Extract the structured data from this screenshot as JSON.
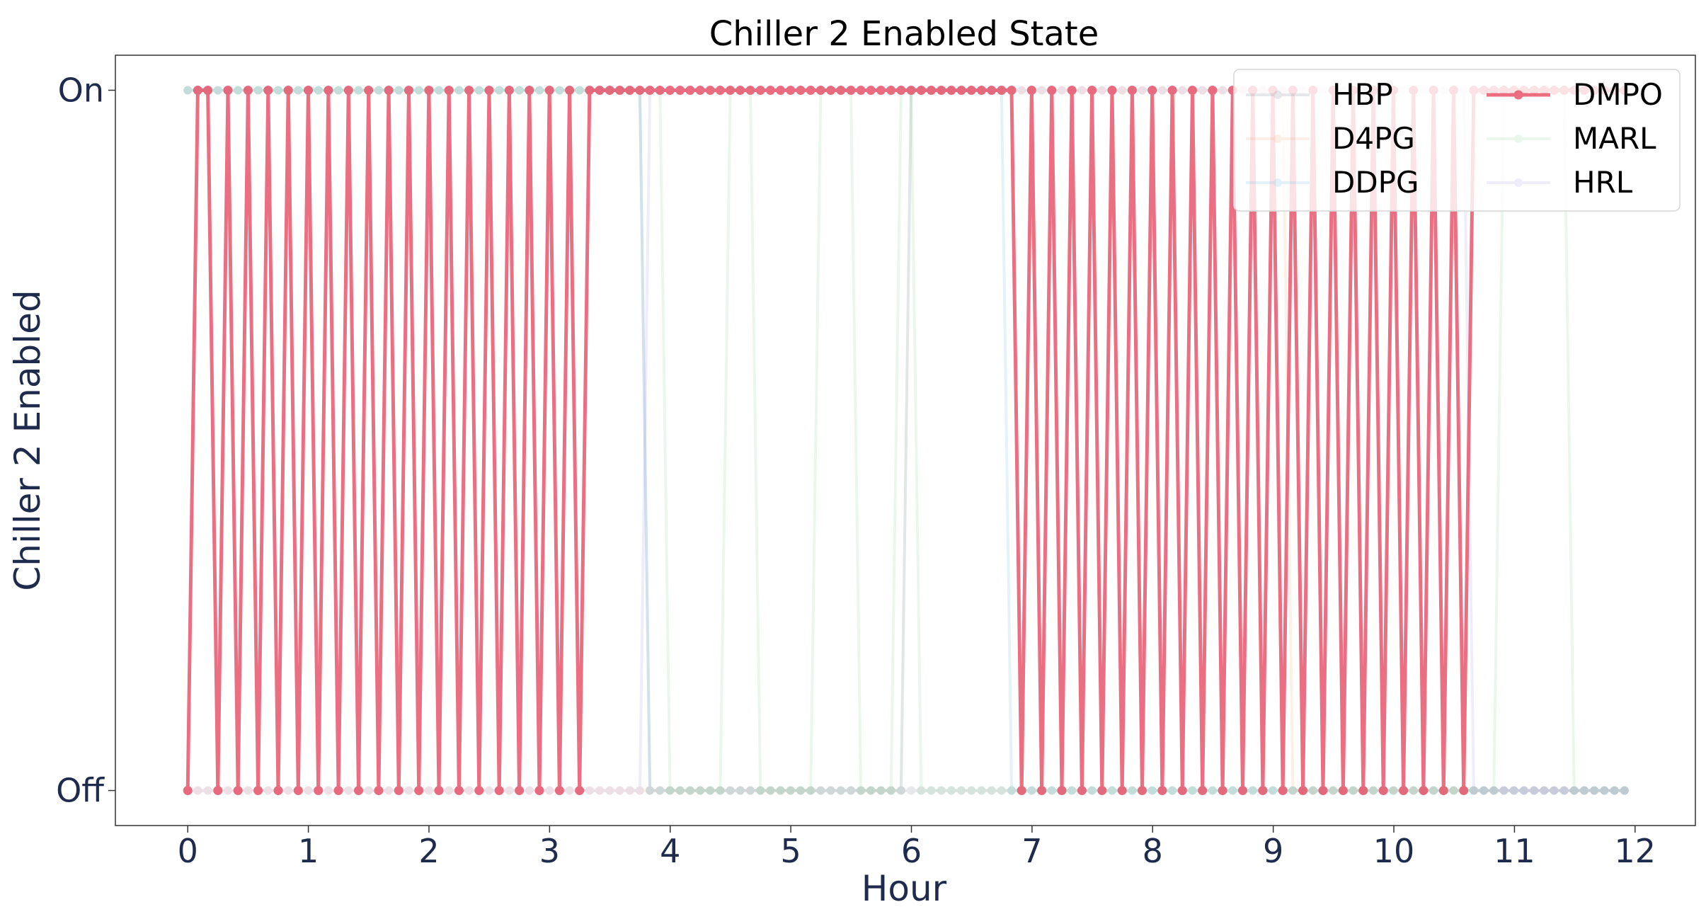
{
  "chart_data": {
    "type": "line",
    "title": "Chiller 2 Enabled State",
    "xlabel": "Hour",
    "ylabel": "Chiller 2 Enabled",
    "xlim": [
      -0.6,
      12.5
    ],
    "ylim": [
      -0.05,
      1.05
    ],
    "xticks": [
      0,
      1,
      2,
      3,
      4,
      5,
      6,
      7,
      8,
      9,
      10,
      11,
      12
    ],
    "yticks": [
      0,
      1
    ],
    "ytick_labels": [
      "Off",
      "On"
    ],
    "x_step_hours": 0.0833,
    "points_per_series": 144,
    "grid": false,
    "legend": {
      "position": "top-right",
      "columns": 2,
      "order": [
        "HBP",
        "D4PG",
        "DDPG",
        "DMPO",
        "MARL",
        "HRL"
      ]
    },
    "series": [
      {
        "name": "HBP",
        "color": "#1f2b4d",
        "alpha": 0.1,
        "highlight": false,
        "segments": [
          [
            0,
            46,
            1
          ],
          [
            46,
            144,
            0
          ]
        ]
      },
      {
        "name": "D4PG",
        "color": "#f3a36b",
        "alpha": 0.16,
        "highlight": false,
        "segments": [
          [
            0,
            72,
            0
          ],
          [
            72,
            110,
            1
          ],
          [
            110,
            144,
            0
          ]
        ]
      },
      {
        "name": "DDPG",
        "color": "#7ec8e3",
        "alpha": 0.22,
        "highlight": false,
        "segments": [
          [
            0,
            46,
            1
          ],
          [
            46,
            72,
            0
          ],
          [
            72,
            82,
            1
          ],
          [
            82,
            144,
            0
          ]
        ]
      },
      {
        "name": "DMPO",
        "color": "#e8566c",
        "alpha": 0.85,
        "highlight": true,
        "segments": [
          [
            0,
            1,
            0
          ],
          [
            1,
            3,
            1
          ],
          [
            3,
            41,
            "alt_start_0"
          ],
          [
            41,
            83,
            1
          ],
          [
            83,
            128,
            "alt_start_0"
          ],
          [
            128,
            144,
            1
          ]
        ]
      },
      {
        "name": "MARL",
        "color": "#8fd49b",
        "alpha": 0.18,
        "highlight": false,
        "segments": [
          [
            0,
            48,
            1
          ],
          [
            48,
            54,
            0
          ],
          [
            54,
            57,
            1
          ],
          [
            57,
            63,
            0
          ],
          [
            63,
            67,
            1
          ],
          [
            67,
            71,
            0
          ],
          [
            71,
            73,
            1
          ],
          [
            73,
            131,
            0
          ],
          [
            131,
            138,
            1
          ],
          [
            138,
            144,
            0
          ]
        ]
      },
      {
        "name": "HRL",
        "color": "#a89de8",
        "alpha": 0.18,
        "highlight": false,
        "segments": [
          [
            0,
            46,
            0
          ],
          [
            46,
            128,
            1
          ],
          [
            128,
            144,
            0
          ]
        ]
      }
    ]
  }
}
